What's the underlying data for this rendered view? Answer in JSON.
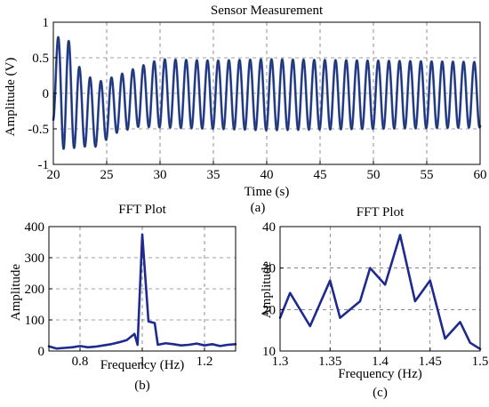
{
  "colors": {
    "background": "#ffffff",
    "axis": "#000000",
    "line": "#1f2a8f",
    "line_fill": "#3344cc",
    "marker": "#1a3a2a",
    "yellow_artifact": "#f5f200"
  },
  "chart_data": [
    {
      "id": "a",
      "type": "line",
      "title": "Sensor Measurement",
      "xlabel": "Time (s)",
      "ylabel": "Amplitude (V)",
      "caption": "(a)",
      "xlim": [
        20,
        60
      ],
      "ylim": [
        -1,
        1
      ],
      "xticks": [
        20,
        25,
        30,
        35,
        40,
        45,
        50,
        55,
        60
      ],
      "yticks": [
        -1,
        -0.5,
        0,
        0.5,
        1
      ],
      "ytick_labels": [
        "-1",
        "-0.5",
        "0",
        "0.5",
        "1"
      ],
      "grid": true,
      "signal": {
        "frequency_hz": 1.0,
        "t_start": 20,
        "t_end": 60,
        "envelope": [
          {
            "t": 20.0,
            "amp": 0.55,
            "offset": 0.15
          },
          {
            "t": 21.0,
            "amp": 0.85,
            "offset": 0.05
          },
          {
            "t": 22.5,
            "amp": 0.55,
            "offset": -0.2
          },
          {
            "t": 24.0,
            "amp": 0.45,
            "offset": -0.3
          },
          {
            "t": 26.0,
            "amp": 0.4,
            "offset": -0.15
          },
          {
            "t": 28.0,
            "amp": 0.42,
            "offset": -0.05
          },
          {
            "t": 30.0,
            "amp": 0.48,
            "offset": 0.0
          },
          {
            "t": 35.0,
            "amp": 0.48,
            "offset": -0.02
          },
          {
            "t": 40.0,
            "amp": 0.5,
            "offset": -0.02
          },
          {
            "t": 50.0,
            "amp": 0.48,
            "offset": -0.02
          },
          {
            "t": 60.0,
            "amp": 0.46,
            "offset": -0.02
          }
        ]
      }
    },
    {
      "id": "b",
      "type": "line",
      "title": "FFT Plot",
      "xlabel": "Frequency (Hz)",
      "ylabel": "Amplitude",
      "caption": "(b)",
      "xlim": [
        0.7,
        1.3
      ],
      "ylim": [
        0,
        400
      ],
      "xticks": [
        0.8,
        1.0,
        1.2
      ],
      "xtick_labels": [
        "0.8",
        "1",
        "1.2"
      ],
      "yticks": [
        0,
        100,
        200,
        300,
        400
      ],
      "grid": true,
      "series": [
        {
          "x": [
            0.7,
            0.725,
            0.75,
            0.775,
            0.8,
            0.825,
            0.85,
            0.875,
            0.9,
            0.925,
            0.95,
            0.975,
            0.985,
            1.0,
            1.02,
            1.04,
            1.05,
            1.075,
            1.1,
            1.125,
            1.15,
            1.175,
            1.2,
            1.225,
            1.25,
            1.275,
            1.3
          ],
          "y": [
            15,
            8,
            10,
            12,
            16,
            12,
            14,
            18,
            22,
            28,
            35,
            55,
            20,
            375,
            95,
            90,
            20,
            25,
            22,
            18,
            20,
            24,
            18,
            22,
            16,
            20,
            22
          ]
        }
      ]
    },
    {
      "id": "c",
      "type": "line",
      "title": "FFT Plot",
      "xlabel": "Frequency (Hz)",
      "ylabel": "Amplitude",
      "caption": "(c)",
      "xlim": [
        1.3,
        1.5
      ],
      "ylim": [
        10,
        40
      ],
      "xticks": [
        1.3,
        1.35,
        1.4,
        1.45,
        1.5
      ],
      "yticks": [
        10,
        20,
        30,
        40
      ],
      "grid": true,
      "series": [
        {
          "x": [
            1.3,
            1.31,
            1.33,
            1.35,
            1.36,
            1.38,
            1.39,
            1.405,
            1.42,
            1.435,
            1.45,
            1.465,
            1.48,
            1.49,
            1.5
          ],
          "y": [
            18,
            24,
            16,
            27,
            18,
            22,
            30,
            26,
            38,
            22,
            27,
            13,
            17,
            12,
            10.5
          ]
        }
      ]
    }
  ]
}
